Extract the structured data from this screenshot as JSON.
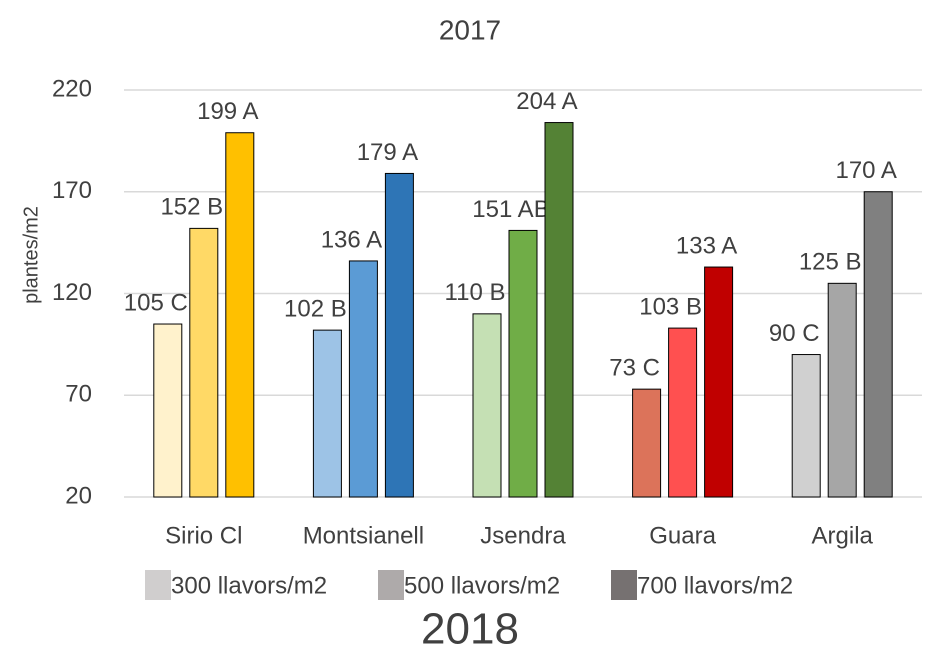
{
  "chart_data": {
    "type": "bar",
    "title": "2017",
    "footer": "2018",
    "y_label": "plantes/m2",
    "categories": [
      "Sirio Cl",
      "Montsianell",
      "Jsendra",
      "Guara",
      "Argila"
    ],
    "series": [
      {
        "name": "300 llavors/m2",
        "color": "#d0cece",
        "colors": [
          "#fff2cc",
          "#9dc3e6",
          "#c5e0b4",
          "#dc735a",
          "#d0d0d0"
        ],
        "values": [
          105,
          102,
          110,
          73,
          90
        ],
        "value_labels": [
          "105 C",
          "102 B",
          "110 B",
          "73 C",
          "90 C"
        ]
      },
      {
        "name": "500 llavors/m2",
        "color": "#aeaaaa",
        "colors": [
          "#ffd966",
          "#5b9bd5",
          "#70ad47",
          "#ff5050",
          "#a6a6a6"
        ],
        "values": [
          152,
          136,
          151,
          103,
          125
        ],
        "value_labels": [
          "152 B",
          "136 A",
          "151 AB",
          "103 B",
          "125 B"
        ]
      },
      {
        "name": "700 llavors/m2",
        "color": "#767171",
        "colors": [
          "#ffc000",
          "#2e75b6",
          "#548235",
          "#c00000",
          "#808080"
        ],
        "values": [
          199,
          179,
          204,
          133,
          170
        ],
        "value_labels": [
          "199 A",
          "179 A",
          "204 A",
          "133 A",
          "170 A"
        ]
      }
    ],
    "ylim": [
      20,
      220
    ],
    "yticks": [
      20,
      70,
      120,
      170,
      220
    ],
    "grid": true
  }
}
